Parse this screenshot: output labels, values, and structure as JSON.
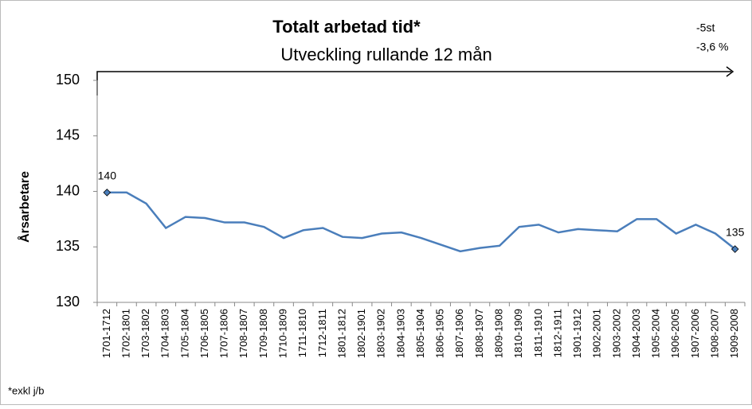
{
  "chart_data": {
    "type": "line",
    "title": "Totalt arbetad tid*",
    "subtitle": "Utveckling rullande 12 mån",
    "y_label": "Årsarbetare",
    "annotations": [
      "-5st",
      "-3,6 %"
    ],
    "footnote": "*exkl j/b",
    "categories": [
      "1701-1712",
      "1702-1801",
      "1703-1802",
      "1704-1803",
      "1705-1804",
      "1706-1805",
      "1707-1806",
      "1708-1807",
      "1709-1808",
      "1710-1809",
      "1711-1810",
      "1712-1811",
      "1801-1812",
      "1802-1901",
      "1803-1902",
      "1804-1903",
      "1805-1904",
      "1806-1905",
      "1807-1906",
      "1808-1907",
      "1809-1908",
      "1810-1909",
      "1811-1910",
      "1812-1911",
      "1901-1912",
      "1902-2001",
      "1903-2002",
      "1904-2003",
      "1905-2004",
      "1906-2005",
      "1907-2006",
      "1908-2007",
      "1909-2008"
    ],
    "values": [
      139.9,
      139.9,
      138.9,
      136.7,
      137.7,
      137.6,
      137.2,
      137.2,
      136.8,
      135.8,
      136.5,
      136.7,
      135.9,
      135.8,
      136.2,
      136.3,
      135.8,
      135.2,
      134.6,
      134.9,
      135.1,
      136.8,
      137.0,
      136.3,
      136.6,
      136.5,
      136.4,
      137.5,
      137.5,
      136.2,
      137.0,
      136.2,
      134.8
    ],
    "value_labels": [
      "140",
      null,
      null,
      null,
      null,
      null,
      null,
      null,
      null,
      null,
      null,
      null,
      null,
      null,
      null,
      null,
      null,
      null,
      null,
      null,
      null,
      null,
      null,
      null,
      null,
      null,
      null,
      null,
      null,
      null,
      null,
      null,
      "135"
    ],
    "color": "#4a7ebb",
    "ylim": [
      130,
      150
    ],
    "yticks": [
      130,
      135,
      140,
      145,
      150
    ],
    "grid": false
  }
}
